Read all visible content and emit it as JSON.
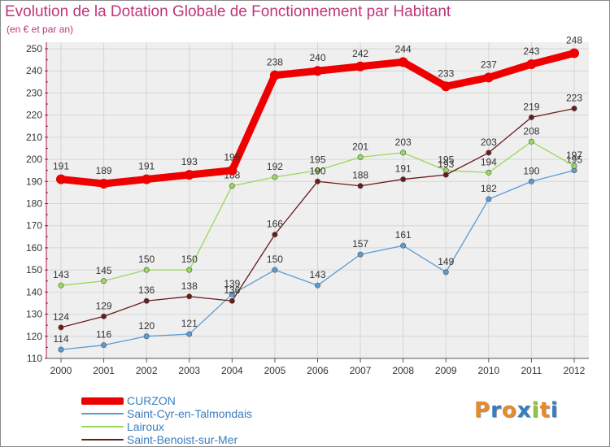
{
  "title": "Evolution de la Dotation Globale de Fonctionnement par Habitant",
  "subtitle": "(en € et par an)",
  "logo": {
    "text": "Proxiti",
    "letters": [
      "P",
      "r",
      "o",
      "x",
      "i",
      "t",
      "i"
    ],
    "letter_colors": [
      "#e8892a",
      "#3a7cc0",
      "#e8892a",
      "#3a7cc0",
      "#8fc43f",
      "#e8892a",
      "#3a7cc0"
    ]
  },
  "chart_data": {
    "type": "line",
    "x": [
      "2000",
      "2001",
      "2002",
      "2003",
      "2004",
      "2005",
      "2006",
      "2007",
      "2008",
      "2009",
      "2010",
      "2011",
      "2012"
    ],
    "ylim": [
      110,
      250
    ],
    "yticks": [
      110,
      120,
      130,
      140,
      150,
      160,
      170,
      180,
      190,
      200,
      210,
      220,
      230,
      240,
      250
    ],
    "grid": true,
    "legend_position": "bottom-left",
    "series": [
      {
        "name": "Saint-Cyr-en-Talmondais",
        "color": "#5b9bd5",
        "values": [
          114,
          116,
          120,
          121,
          139,
          150,
          143,
          157,
          161,
          149,
          182,
          190,
          195
        ]
      },
      {
        "name": "Lairoux",
        "color": "#99d85a",
        "values": [
          143,
          145,
          150,
          150,
          188,
          192,
          195,
          201,
          203,
          195,
          194,
          208,
          197
        ]
      },
      {
        "name": "Saint-Benoist-sur-Mer",
        "color": "#6b1b1b",
        "values": [
          124,
          129,
          136,
          138,
          136,
          166,
          190,
          188,
          191,
          193,
          203,
          219,
          223
        ]
      },
      {
        "name": "CURZON",
        "color": "#ee0000",
        "values": [
          191,
          189,
          191,
          193,
          195,
          238,
          240,
          242,
          244,
          233,
          237,
          243,
          248
        ]
      }
    ]
  }
}
